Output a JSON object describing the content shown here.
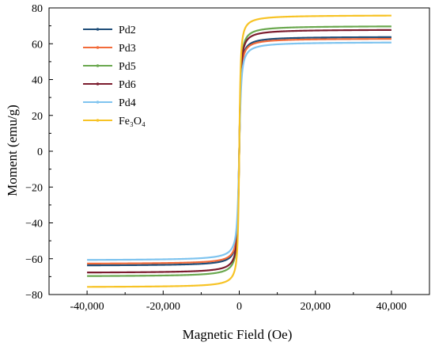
{
  "chart_data": {
    "type": "line",
    "xlabel": "Magnetic Field (Oe)",
    "ylabel": "Moment (emu/g)",
    "xlim": [
      -50000,
      50000
    ],
    "ylim": [
      -80,
      80
    ],
    "x_ticks": [
      -40000,
      -20000,
      0,
      20000,
      40000
    ],
    "x_tick_labels": [
      "-40,000",
      "-20,000",
      "0",
      "20,000",
      "40,000"
    ],
    "y_ticks": [
      -80,
      -60,
      -40,
      -20,
      0,
      20,
      40,
      60,
      80
    ],
    "y_tick_labels": [
      "−80",
      "−60",
      "−40",
      "−20",
      "0",
      "20",
      "40",
      "60",
      "80"
    ],
    "grid": false,
    "legend_position": "top-left",
    "series": [
      {
        "name": "Pd2",
        "color": "#1f4e79",
        "ms": 64.0,
        "x_sat_fraction": 0.3,
        "values": [
          [
            -40000,
            -64.0
          ],
          [
            -20000,
            -62.6
          ],
          [
            -10000,
            -60.4
          ],
          [
            -5000,
            -56.3
          ],
          [
            -2000,
            -46.8
          ],
          [
            0,
            0
          ],
          [
            2000,
            46.8
          ],
          [
            5000,
            56.3
          ],
          [
            10000,
            60.4
          ],
          [
            20000,
            62.6
          ],
          [
            40000,
            64.0
          ]
        ]
      },
      {
        "name": "Pd3",
        "color": "#f26b3a",
        "ms": 63.0,
        "x_sat_fraction": 0.3,
        "values": [
          [
            -40000,
            -63.0
          ],
          [
            -20000,
            -61.6
          ],
          [
            -10000,
            -59.4
          ],
          [
            -5000,
            -55.4
          ],
          [
            -2000,
            -46.0
          ],
          [
            0,
            0
          ],
          [
            2000,
            46.0
          ],
          [
            5000,
            55.4
          ],
          [
            10000,
            59.4
          ],
          [
            20000,
            61.6
          ],
          [
            40000,
            63.0
          ]
        ]
      },
      {
        "name": "Pd5",
        "color": "#6aa84f",
        "ms": 70.0,
        "x_sat_fraction": 0.3,
        "values": [
          [
            -40000,
            -70.0
          ],
          [
            -20000,
            -68.5
          ],
          [
            -10000,
            -66.0
          ],
          [
            -5000,
            -61.6
          ],
          [
            -2000,
            -51.2
          ],
          [
            0,
            0
          ],
          [
            2000,
            51.2
          ],
          [
            5000,
            61.6
          ],
          [
            10000,
            66.0
          ],
          [
            20000,
            68.5
          ],
          [
            40000,
            70.0
          ]
        ]
      },
      {
        "name": "Pd6",
        "color": "#7b1c2e",
        "ms": 68.0,
        "x_sat_fraction": 0.3,
        "values": [
          [
            -40000,
            -68.0
          ],
          [
            -20000,
            -66.5
          ],
          [
            -10000,
            -64.1
          ],
          [
            -5000,
            -59.8
          ],
          [
            -2000,
            -49.7
          ],
          [
            0,
            0
          ],
          [
            2000,
            49.7
          ],
          [
            5000,
            59.8
          ],
          [
            10000,
            64.1
          ],
          [
            20000,
            66.5
          ],
          [
            40000,
            68.0
          ]
        ]
      },
      {
        "name": "Pd4",
        "color": "#7fc4ef",
        "ms": 61.0,
        "x_sat_fraction": 0.36,
        "values": [
          [
            -40000,
            -61.0
          ],
          [
            -20000,
            -59.2
          ],
          [
            -10000,
            -56.5
          ],
          [
            -5000,
            -51.8
          ],
          [
            -2000,
            -41.5
          ],
          [
            0,
            0
          ],
          [
            2000,
            41.5
          ],
          [
            5000,
            51.8
          ],
          [
            10000,
            56.5
          ],
          [
            20000,
            59.2
          ],
          [
            40000,
            61.0
          ]
        ]
      },
      {
        "name": "Fe₃O₄",
        "color": "#f7c325",
        "ms": 76.0,
        "x_sat_fraction": 0.25,
        "values": [
          [
            -40000,
            -76.0
          ],
          [
            -20000,
            -74.6
          ],
          [
            -10000,
            -72.4
          ],
          [
            -5000,
            -68.4
          ],
          [
            -2000,
            -58.2
          ],
          [
            0,
            0
          ],
          [
            2000,
            58.2
          ],
          [
            5000,
            68.4
          ],
          [
            10000,
            72.4
          ],
          [
            20000,
            74.6
          ],
          [
            40000,
            76.0
          ]
        ]
      }
    ]
  }
}
